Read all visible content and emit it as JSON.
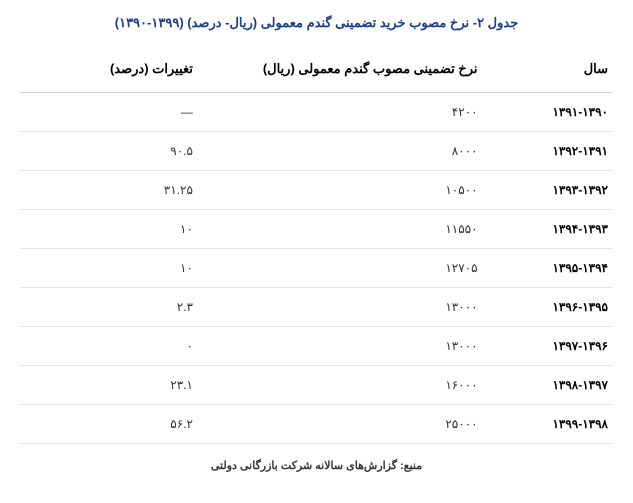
{
  "title": "جدول ۲- نرخ مصوب خرید تضمینی گندم معمولی (ریال- درصد) (۱۳۹۹-۱۳۹۰)",
  "columns": {
    "year": "سال",
    "rate": "نرخ تضمینی مصوب گندم معمولی (ریال)",
    "change": "تغییرات (درصد)"
  },
  "rows": [
    {
      "year": "۱۳۹۱-۱۳۹۰",
      "rate": "۴۲۰۰",
      "change": "—"
    },
    {
      "year": "۱۳۹۲-۱۳۹۱",
      "rate": "۸۰۰۰",
      "change": "۹۰.۵"
    },
    {
      "year": "۱۳۹۳-۱۳۹۲",
      "rate": "۱۰۵۰۰",
      "change": "۳۱.۲۵"
    },
    {
      "year": "۱۳۹۴-۱۳۹۳",
      "rate": "۱۱۵۵۰",
      "change": "۱۰"
    },
    {
      "year": "۱۳۹۵-۱۳۹۴",
      "rate": "۱۲۷۰۵",
      "change": "۱۰"
    },
    {
      "year": "۱۳۹۶-۱۳۹۵",
      "rate": "۱۳۰۰۰",
      "change": "۲.۳"
    },
    {
      "year": "۱۳۹۷-۱۳۹۶",
      "rate": "۱۳۰۰۰",
      "change": "۰"
    },
    {
      "year": "۱۳۹۸-۱۳۹۷",
      "rate": "۱۶۰۰۰",
      "change": "۲۳.۱"
    },
    {
      "year": "۱۳۹۹-۱۳۹۸",
      "rate": "۲۵۰۰۰",
      "change": "۵۶.۲"
    }
  ],
  "source": "منبع: گزارش‌های سالانه شرکت بازرگانی دولتی",
  "styling": {
    "title_color": "#1a3e8c",
    "title_fontsize": 13,
    "header_fontsize": 13,
    "cell_fontsize": 12,
    "source_fontsize": 11,
    "border_color": "#e5e5e5",
    "header_border_color": "#d0d0d0",
    "text_color": "#333333",
    "year_color": "#000000",
    "background": "#ffffff"
  }
}
